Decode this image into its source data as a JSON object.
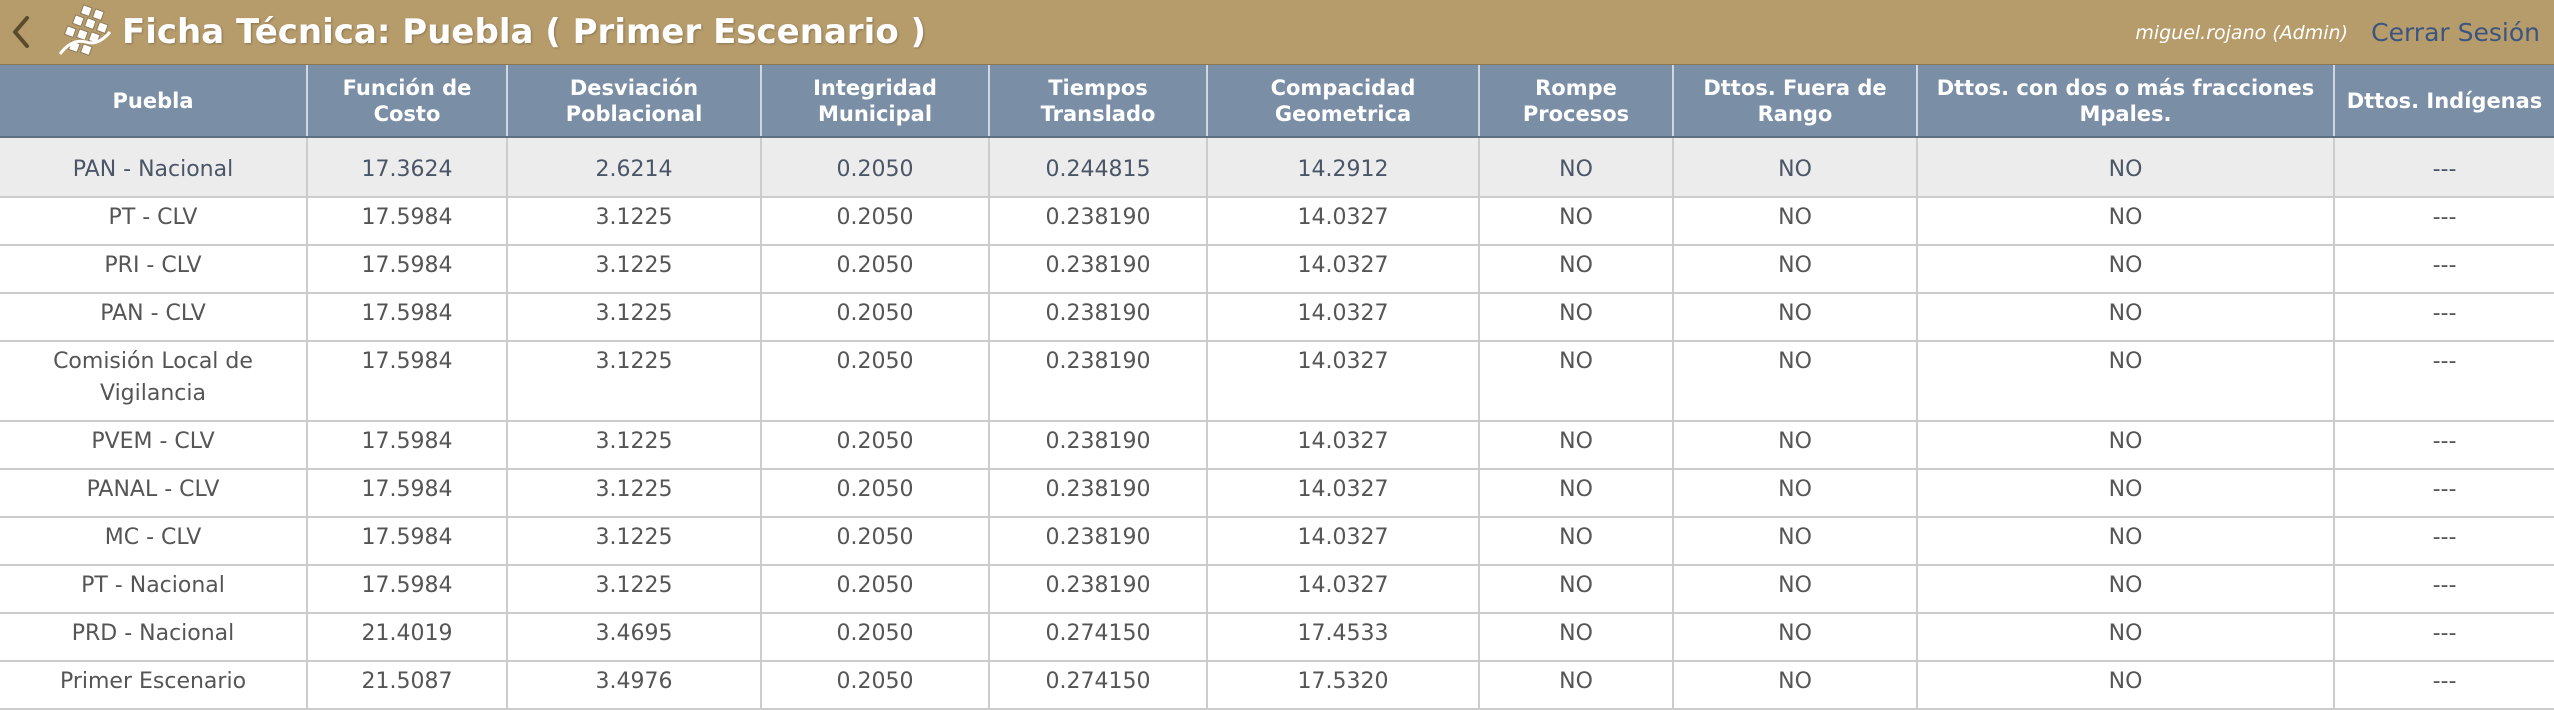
{
  "header": {
    "title": "Ficha Técnica: Puebla ( Primer Escenario )",
    "user": "miguel.rojano (Admin)",
    "logout_label": "Cerrar Sesión",
    "back_icon": "chevron-left-icon",
    "logo_icon": "grid-cube-logo-icon",
    "colors": {
      "bar": "#b79c6b",
      "logout": "#3c5580",
      "table_header": "#7a8ea6"
    }
  },
  "table": {
    "columns": [
      "Puebla",
      "Función de Costo",
      "Desviación Poblacional",
      "Integridad Municipal",
      "Tiempos Translado",
      "Compacidad Geometrica",
      "Rompe Procesos",
      "Dttos. Fuera de Rango",
      "Dttos. con dos o más fracciones Mpales.",
      "Dttos. Indígenas"
    ],
    "rows": [
      [
        "PAN - Nacional",
        "17.3624",
        "2.6214",
        "0.2050",
        "0.244815",
        "14.2912",
        "NO",
        "NO",
        "NO",
        "---"
      ],
      [
        "PT - CLV",
        "17.5984",
        "3.1225",
        "0.2050",
        "0.238190",
        "14.0327",
        "NO",
        "NO",
        "NO",
        "---"
      ],
      [
        "PRI - CLV",
        "17.5984",
        "3.1225",
        "0.2050",
        "0.238190",
        "14.0327",
        "NO",
        "NO",
        "NO",
        "---"
      ],
      [
        "PAN - CLV",
        "17.5984",
        "3.1225",
        "0.2050",
        "0.238190",
        "14.0327",
        "NO",
        "NO",
        "NO",
        "---"
      ],
      [
        "Comisión Local de Vigilancia",
        "17.5984",
        "3.1225",
        "0.2050",
        "0.238190",
        "14.0327",
        "NO",
        "NO",
        "NO",
        "---"
      ],
      [
        "PVEM - CLV",
        "17.5984",
        "3.1225",
        "0.2050",
        "0.238190",
        "14.0327",
        "NO",
        "NO",
        "NO",
        "---"
      ],
      [
        "PANAL - CLV",
        "17.5984",
        "3.1225",
        "0.2050",
        "0.238190",
        "14.0327",
        "NO",
        "NO",
        "NO",
        "---"
      ],
      [
        "MC - CLV",
        "17.5984",
        "3.1225",
        "0.2050",
        "0.238190",
        "14.0327",
        "NO",
        "NO",
        "NO",
        "---"
      ],
      [
        "PT - Nacional",
        "17.5984",
        "3.1225",
        "0.2050",
        "0.238190",
        "14.0327",
        "NO",
        "NO",
        "NO",
        "---"
      ],
      [
        "PRD - Nacional",
        "21.4019",
        "3.4695",
        "0.2050",
        "0.274150",
        "17.4533",
        "NO",
        "NO",
        "NO",
        "---"
      ],
      [
        "Primer Escenario",
        "21.5087",
        "3.4976",
        "0.2050",
        "0.274150",
        "17.5320",
        "NO",
        "NO",
        "NO",
        "---"
      ]
    ]
  }
}
